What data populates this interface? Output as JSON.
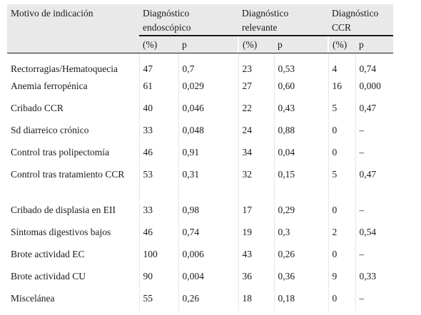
{
  "header": {
    "motivo": "Motivo de indicación",
    "groups": [
      {
        "label": "Diagnóstico endoscópico"
      },
      {
        "label": "Diagnóstico relevante"
      },
      {
        "label": "Diagnóstico CCR"
      }
    ],
    "sub_pct": "(%)",
    "sub_p": "p"
  },
  "rows": [
    {
      "motivo": "Rectorragias/Hematoquecia",
      "v": [
        "47",
        "0,7",
        "23",
        "0,53",
        "4",
        "0,74"
      ]
    },
    {
      "motivo": "Anemia ferropénica",
      "v": [
        "61",
        "0,029",
        "27",
        "0,60",
        "16",
        "0,000"
      ]
    },
    {
      "motivo": "Cribado CCR",
      "v": [
        "40",
        "0,046",
        "22",
        "0,43",
        "5",
        "0,47"
      ]
    },
    {
      "motivo": "Sd diarreico crónico",
      "v": [
        "33",
        "0,048",
        "24",
        "0,88",
        "0",
        "–"
      ]
    },
    {
      "motivo": "Control tras polipectomía",
      "v": [
        "46",
        "0,91",
        "34",
        "0,04",
        "0",
        "–"
      ]
    },
    {
      "motivo": "Control tras tratamiento CCR",
      "v": [
        "53",
        "0,31",
        "32",
        "0,15",
        "5",
        "0,47"
      ]
    },
    {
      "motivo": "Cribado de displasia en EII",
      "v": [
        "33",
        "0,98",
        "17",
        "0,29",
        "0",
        "–"
      ]
    },
    {
      "motivo": "Síntomas digestivos bajos",
      "v": [
        "46",
        "0,74",
        "19",
        "0,3",
        "2",
        "0,54"
      ]
    },
    {
      "motivo": "Brote actividad EC",
      "v": [
        "100",
        "0,006",
        "43",
        "0,26",
        "0",
        "–"
      ]
    },
    {
      "motivo": "Brote actividad CU",
      "v": [
        "90",
        "0,004",
        "36",
        "0,36",
        "9",
        "0,33"
      ]
    },
    {
      "motivo": "Miscelánea",
      "v": [
        "55",
        "0,26",
        "18",
        "0,18",
        "0",
        "–"
      ]
    }
  ]
}
